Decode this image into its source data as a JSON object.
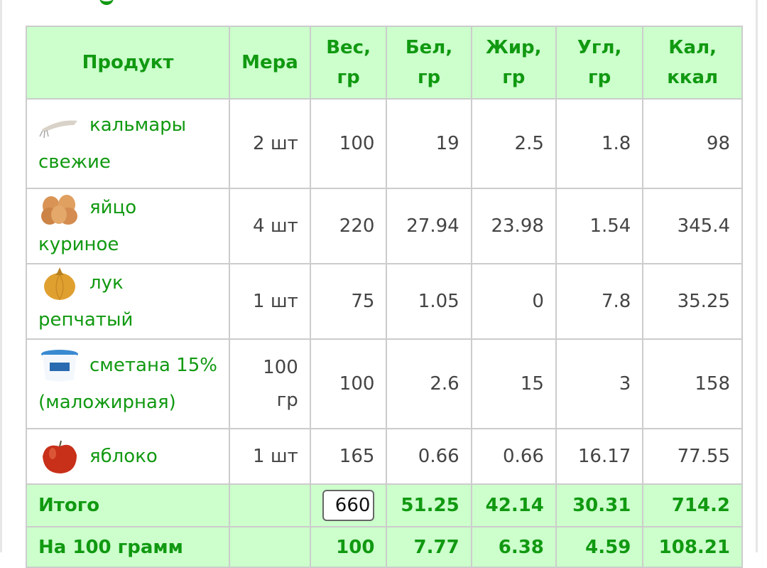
{
  "headers": [
    "Продукт",
    "Мера",
    "Вес, гр",
    "Бел, гр",
    "Жир, гр",
    "Угл, гр",
    "Кал, ккал"
  ],
  "rows": [
    {
      "name": "кальмары свежие",
      "icon": "squid-icon",
      "measure": "2 шт",
      "weight": "100",
      "protein": "19",
      "fat": "2.5",
      "carbs": "1.8",
      "kcal": "98"
    },
    {
      "name": "яйцо куриное",
      "icon": "eggs-icon",
      "measure": "4 шт",
      "weight": "220",
      "protein": "27.94",
      "fat": "23.98",
      "carbs": "1.54",
      "kcal": "345.4"
    },
    {
      "name": "лук репчатый",
      "icon": "onion-icon",
      "measure": "1 шт",
      "weight": "75",
      "protein": "1.05",
      "fat": "0",
      "carbs": "7.8",
      "kcal": "35.25"
    },
    {
      "name": "сметана 15% (маложирная)",
      "icon": "sour-cream-icon",
      "measure": "100 гр",
      "weight": "100",
      "protein": "2.6",
      "fat": "15",
      "carbs": "3",
      "kcal": "158"
    },
    {
      "name": "яблоко",
      "icon": "apple-icon",
      "measure": "1 шт",
      "weight": "165",
      "protein": "0.66",
      "fat": "0.66",
      "carbs": "16.17",
      "kcal": "77.55"
    }
  ],
  "total": {
    "label": "Итого",
    "measure": "",
    "weight": "660",
    "protein": "51.25",
    "fat": "42.14",
    "carbs": "30.31",
    "kcal": "714.2"
  },
  "per100": {
    "label": "На 100 грамм",
    "measure": "",
    "weight": "100",
    "protein": "7.77",
    "fat": "6.38",
    "carbs": "4.59",
    "kcal": "108.21"
  },
  "colors": {
    "accent": "#119911",
    "header_bg": "#ccffcc",
    "border": "#cccccc"
  }
}
